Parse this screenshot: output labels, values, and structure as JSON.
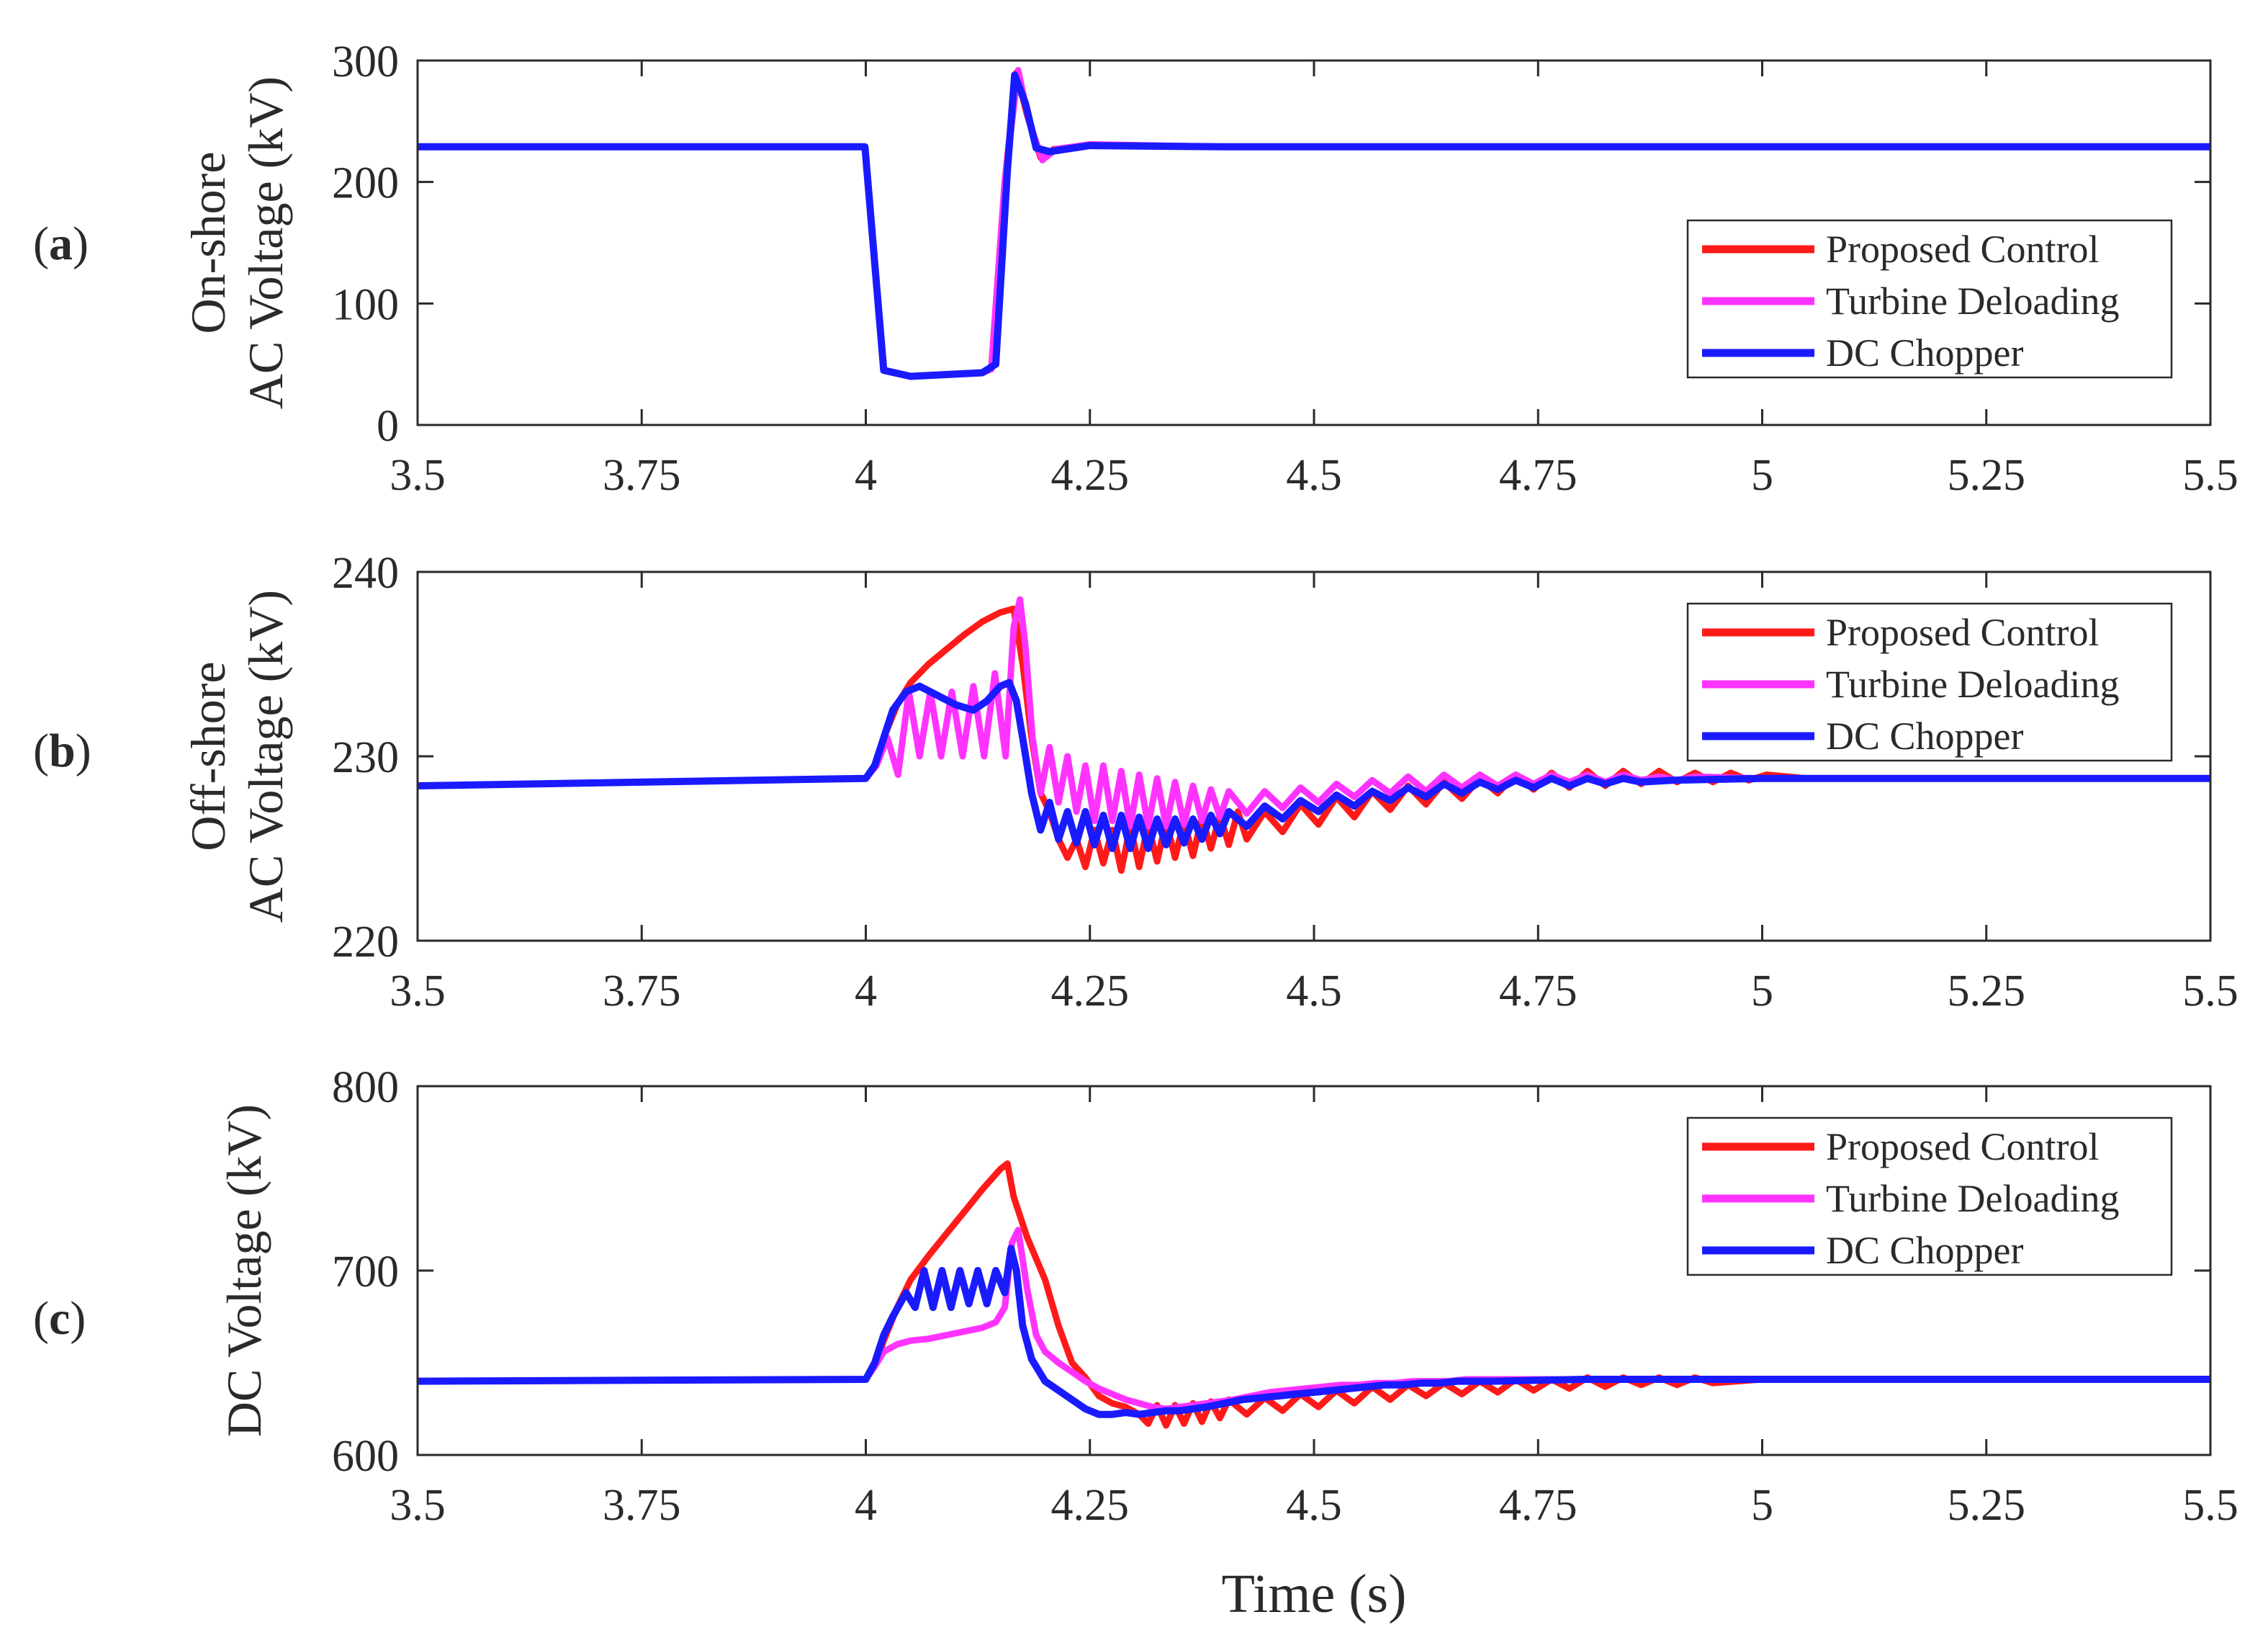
{
  "chart_data": [
    {
      "type": "line",
      "panel": "(a)",
      "panel_open": "(",
      "panel_letter": "a",
      "panel_close": ")",
      "ylabel_lines": [
        "On-shore",
        "AC Voltage (kV)"
      ],
      "xlabel": "",
      "xlim": [
        3.5,
        5.5
      ],
      "ylim": [
        0,
        300
      ],
      "xticks": [
        3.5,
        3.75,
        4,
        4.25,
        4.5,
        4.75,
        5,
        5.25,
        5.5
      ],
      "xtick_labels": [
        "3.5",
        "3.75",
        "4",
        "4.25",
        "4.5",
        "4.75",
        "5",
        "5.25",
        "5.5"
      ],
      "yticks": [
        0,
        100,
        200,
        300
      ],
      "ytick_labels": [
        "0",
        "100",
        "200",
        "300"
      ],
      "legend": [
        "Proposed Control",
        "Turbine Deloading",
        "DC Chopper"
      ],
      "legend_position": "bottom-right",
      "series": [
        {
          "name": "Proposed Control",
          "color": "#ff1a1a",
          "x": [
            3.5,
            3.999,
            4.02,
            4.05,
            4.13,
            4.14,
            4.155,
            4.168,
            4.18,
            4.195,
            4.21,
            4.25,
            4.4,
            5.5
          ],
          "y": [
            229,
            229,
            45,
            40,
            43,
            46,
            200,
            290,
            255,
            220,
            227,
            230,
            229,
            229
          ]
        },
        {
          "name": "Turbine Deloading",
          "color": "#ff33ff",
          "x": [
            3.5,
            3.999,
            4.02,
            4.05,
            4.13,
            4.14,
            4.155,
            4.17,
            4.182,
            4.197,
            4.212,
            4.25,
            4.4,
            5.5
          ],
          "y": [
            229,
            229,
            45,
            40,
            43,
            46,
            200,
            292,
            250,
            218,
            227,
            231,
            229,
            229
          ]
        },
        {
          "name": "DC Chopper",
          "color": "#1a1aff",
          "x": [
            3.5,
            3.999,
            4.02,
            4.05,
            4.13,
            4.145,
            4.158,
            4.166,
            4.178,
            4.19,
            4.205,
            4.25,
            4.4,
            5.5
          ],
          "y": [
            229,
            229,
            45,
            40,
            43,
            50,
            210,
            288,
            265,
            228,
            225,
            230,
            229,
            229
          ]
        }
      ]
    },
    {
      "type": "line",
      "panel": "(b)",
      "panel_open": "(",
      "panel_letter": "b",
      "panel_close": ")",
      "ylabel_lines": [
        "Off-shore",
        "AC Voltage (kV)"
      ],
      "xlabel": "",
      "xlim": [
        3.5,
        5.5
      ],
      "ylim": [
        220,
        240
      ],
      "xticks": [
        3.5,
        3.75,
        4,
        4.25,
        4.5,
        4.75,
        5,
        5.25,
        5.5
      ],
      "xtick_labels": [
        "3.5",
        "3.75",
        "4",
        "4.25",
        "4.5",
        "4.75",
        "5",
        "5.25",
        "5.5"
      ],
      "yticks": [
        220,
        230,
        240
      ],
      "ytick_labels": [
        "220",
        "230",
        "240"
      ],
      "legend": [
        "Proposed Control",
        "Turbine Deloading",
        "DC Chopper"
      ],
      "legend_position": "top-right",
      "series": [
        {
          "name": "Proposed Control",
          "color": "#ff1a1a",
          "x": [
            3.5,
            4.0,
            4.01,
            4.02,
            4.035,
            4.05,
            4.07,
            4.09,
            4.11,
            4.13,
            4.15,
            4.165,
            4.175,
            4.185,
            4.195,
            4.205,
            4.215,
            4.225,
            4.235,
            4.245,
            4.255,
            4.265,
            4.275,
            4.285,
            4.295,
            4.305,
            4.315,
            4.325,
            4.335,
            4.345,
            4.355,
            4.365,
            4.375,
            4.385,
            4.395,
            4.405,
            4.415,
            4.425,
            4.445,
            4.465,
            4.485,
            4.505,
            4.525,
            4.545,
            4.565,
            4.585,
            4.605,
            4.625,
            4.645,
            4.665,
            4.685,
            4.705,
            4.725,
            4.745,
            4.765,
            4.785,
            4.805,
            4.825,
            4.845,
            4.865,
            4.885,
            4.905,
            4.925,
            4.945,
            4.965,
            4.985,
            5.005,
            5.05,
            5.2,
            5.35,
            5.5
          ],
          "y": [
            228.4,
            228.8,
            229.5,
            231,
            232.8,
            234,
            235,
            235.8,
            236.6,
            237.3,
            237.8,
            238.0,
            235.0,
            231.0,
            228.0,
            227.0,
            225.5,
            224.5,
            225.5,
            224.0,
            226.0,
            224.2,
            226.0,
            223.8,
            226.2,
            224.0,
            226.3,
            224.3,
            226.5,
            224.5,
            226.5,
            224.6,
            226.7,
            225.0,
            226.8,
            225.2,
            227.0,
            225.5,
            227.0,
            225.9,
            227.4,
            226.3,
            227.8,
            226.7,
            228.1,
            227.1,
            228.4,
            227.4,
            228.6,
            227.7,
            228.8,
            228.0,
            229.0,
            228.2,
            229.1,
            228.3,
            229.2,
            228.4,
            229.2,
            228.5,
            229.2,
            228.6,
            229.1,
            228.6,
            229.1,
            228.7,
            229.0,
            228.8,
            228.8,
            228.8,
            228.8
          ]
        },
        {
          "name": "Turbine Deloading",
          "color": "#ff33ff",
          "x": [
            3.5,
            4.0,
            4.012,
            4.024,
            4.036,
            4.048,
            4.06,
            4.072,
            4.084,
            4.096,
            4.108,
            4.12,
            4.132,
            4.144,
            4.156,
            4.165,
            4.172,
            4.178,
            4.186,
            4.195,
            4.205,
            4.215,
            4.225,
            4.235,
            4.245,
            4.255,
            4.265,
            4.275,
            4.285,
            4.295,
            4.305,
            4.315,
            4.325,
            4.335,
            4.345,
            4.355,
            4.365,
            4.375,
            4.385,
            4.395,
            4.405,
            4.425,
            4.445,
            4.465,
            4.485,
            4.505,
            4.525,
            4.545,
            4.565,
            4.585,
            4.605,
            4.625,
            4.645,
            4.665,
            4.685,
            4.705,
            4.725,
            4.745,
            4.765,
            4.785,
            4.805,
            4.825,
            4.845,
            4.865,
            4.885,
            4.905,
            4.925,
            5.0,
            5.2,
            5.35,
            5.5
          ],
          "y": [
            228.4,
            228.8,
            229.5,
            231,
            229.0,
            233.5,
            230.0,
            233.5,
            230.0,
            233.5,
            230.0,
            233.8,
            230.0,
            234.5,
            230.0,
            237.0,
            238.5,
            236.0,
            231.0,
            228.0,
            230.5,
            227.5,
            230.0,
            227.0,
            229.5,
            226.5,
            229.5,
            226.5,
            229.2,
            226.2,
            229.0,
            226.2,
            228.8,
            226.2,
            228.6,
            226.3,
            228.4,
            226.5,
            228.2,
            226.7,
            228.1,
            226.9,
            228.1,
            227.2,
            228.3,
            227.5,
            228.5,
            227.8,
            228.7,
            228.0,
            228.9,
            228.1,
            229.0,
            228.3,
            229.0,
            228.4,
            229.0,
            228.5,
            229.0,
            228.6,
            229.0,
            228.6,
            229.0,
            228.7,
            228.9,
            228.7,
            228.9,
            228.8,
            228.8,
            228.8,
            228.8
          ]
        },
        {
          "name": "DC Chopper",
          "color": "#1a1aff",
          "x": [
            3.5,
            4.0,
            4.01,
            4.02,
            4.03,
            4.045,
            4.06,
            4.08,
            4.1,
            4.12,
            4.135,
            4.15,
            4.16,
            4.168,
            4.175,
            4.185,
            4.195,
            4.205,
            4.215,
            4.225,
            4.235,
            4.245,
            4.255,
            4.265,
            4.275,
            4.285,
            4.295,
            4.305,
            4.315,
            4.325,
            4.335,
            4.345,
            4.355,
            4.365,
            4.375,
            4.385,
            4.395,
            4.405,
            4.425,
            4.445,
            4.465,
            4.485,
            4.505,
            4.525,
            4.545,
            4.565,
            4.585,
            4.605,
            4.625,
            4.645,
            4.665,
            4.685,
            4.705,
            4.725,
            4.745,
            4.765,
            4.785,
            4.805,
            4.825,
            4.845,
            4.865,
            4.9,
            5.0,
            5.2,
            5.5
          ],
          "y": [
            228.4,
            228.8,
            229.5,
            231,
            232.5,
            233.5,
            233.8,
            233.3,
            232.8,
            232.5,
            233.0,
            233.8,
            234.0,
            233.0,
            231.0,
            228.0,
            226.0,
            227.5,
            225.5,
            227.0,
            225.3,
            227.0,
            225.2,
            226.8,
            225.0,
            226.8,
            225.0,
            226.7,
            225.0,
            226.6,
            225.2,
            226.6,
            225.3,
            226.6,
            225.5,
            226.8,
            225.8,
            227.0,
            226.2,
            227.3,
            226.6,
            227.6,
            227.0,
            227.9,
            227.3,
            228.1,
            227.6,
            228.3,
            227.8,
            228.5,
            228.0,
            228.6,
            228.2,
            228.7,
            228.3,
            228.8,
            228.4,
            228.8,
            228.5,
            228.8,
            228.6,
            228.7,
            228.8,
            228.8,
            228.8
          ]
        }
      ]
    },
    {
      "type": "line",
      "panel": "(c)",
      "panel_open": "(",
      "panel_letter": "c",
      "panel_close": ")",
      "ylabel_lines": [
        "DC Voltage (kV)"
      ],
      "xlabel": "Time (s)",
      "xlim": [
        3.5,
        5.5
      ],
      "ylim": [
        600,
        800
      ],
      "xticks": [
        3.5,
        3.75,
        4,
        4.25,
        4.5,
        4.75,
        5,
        5.25,
        5.5
      ],
      "xtick_labels": [
        "3.5",
        "3.75",
        "4",
        "4.25",
        "4.5",
        "4.75",
        "5",
        "5.25",
        "5.5"
      ],
      "yticks": [
        600,
        700,
        800
      ],
      "ytick_labels": [
        "600",
        "700",
        "800"
      ],
      "legend": [
        "Proposed Control",
        "Turbine Deloading",
        "DC Chopper"
      ],
      "legend_position": "top-right",
      "series": [
        {
          "name": "Proposed Control",
          "color": "#ff1a1a",
          "x": [
            3.5,
            4.0,
            4.01,
            4.02,
            4.035,
            4.05,
            4.07,
            4.09,
            4.11,
            4.13,
            4.15,
            4.158,
            4.165,
            4.18,
            4.2,
            4.215,
            4.23,
            4.245,
            4.26,
            4.275,
            4.29,
            4.305,
            4.315,
            4.325,
            4.335,
            4.345,
            4.355,
            4.365,
            4.375,
            4.385,
            4.395,
            4.405,
            4.425,
            4.445,
            4.465,
            4.485,
            4.505,
            4.525,
            4.545,
            4.565,
            4.585,
            4.605,
            4.625,
            4.645,
            4.665,
            4.685,
            4.705,
            4.725,
            4.745,
            4.765,
            4.785,
            4.805,
            4.825,
            4.845,
            4.865,
            4.885,
            4.905,
            4.925,
            4.945,
            5.0,
            5.2,
            5.35,
            5.5
          ],
          "y": [
            640,
            641,
            648,
            662,
            680,
            695,
            708,
            720,
            732,
            744,
            755,
            758,
            740,
            718,
            695,
            670,
            650,
            642,
            632,
            628,
            626,
            622,
            617,
            627,
            616,
            627,
            617,
            628,
            618,
            629,
            620,
            630,
            622,
            631,
            624,
            633,
            626,
            635,
            628,
            637,
            630,
            638,
            632,
            639,
            633,
            640,
            634,
            641,
            635,
            641,
            636,
            642,
            637,
            642,
            638,
            642,
            638,
            642,
            639,
            641,
            641,
            641,
            641
          ]
        },
        {
          "name": "Turbine Deloading",
          "color": "#ff33ff",
          "x": [
            3.5,
            4.0,
            4.01,
            4.02,
            4.035,
            4.05,
            4.07,
            4.09,
            4.11,
            4.13,
            4.145,
            4.155,
            4.163,
            4.17,
            4.18,
            4.19,
            4.2,
            4.215,
            4.23,
            4.245,
            4.26,
            4.275,
            4.29,
            4.305,
            4.32,
            4.335,
            4.35,
            4.365,
            4.38,
            4.395,
            4.41,
            4.43,
            4.45,
            4.47,
            4.49,
            4.51,
            4.53,
            4.55,
            4.57,
            4.59,
            4.61,
            4.63,
            4.65,
            4.67,
            4.69,
            4.71,
            4.73,
            4.75,
            4.8,
            5.0,
            5.2,
            5.5
          ],
          "y": [
            640,
            641,
            648,
            656,
            660,
            662,
            663,
            665,
            667,
            669,
            672,
            680,
            715,
            722,
            690,
            665,
            656,
            650,
            645,
            640,
            636,
            633,
            630,
            628,
            626,
            625,
            626,
            627,
            628,
            629,
            630,
            632,
            634,
            635,
            636,
            637,
            638,
            638,
            639,
            639,
            640,
            640,
            640,
            641,
            641,
            641,
            641,
            641,
            641,
            641,
            641,
            641
          ]
        },
        {
          "name": "DC Chopper",
          "color": "#1a1aff",
          "x": [
            3.5,
            4.0,
            4.01,
            4.02,
            4.03,
            4.045,
            4.055,
            4.065,
            4.075,
            4.085,
            4.095,
            4.105,
            4.115,
            4.125,
            4.135,
            4.145,
            4.155,
            4.162,
            4.168,
            4.175,
            4.185,
            4.2,
            4.215,
            4.23,
            4.245,
            4.26,
            4.275,
            4.29,
            4.305,
            4.32,
            4.335,
            4.35,
            4.365,
            4.38,
            4.4,
            4.42,
            4.44,
            4.46,
            4.48,
            4.5,
            4.52,
            4.54,
            4.56,
            4.58,
            4.6,
            4.62,
            4.64,
            4.66,
            4.7,
            4.8,
            5.0,
            5.2,
            5.5
          ],
          "y": [
            640,
            641,
            650,
            665,
            675,
            688,
            680,
            700,
            680,
            700,
            680,
            700,
            682,
            700,
            682,
            700,
            688,
            712,
            700,
            670,
            652,
            640,
            635,
            630,
            625,
            622,
            622,
            623,
            622,
            623,
            624,
            624,
            625,
            626,
            628,
            630,
            631,
            632,
            633,
            634,
            635,
            636,
            637,
            638,
            638,
            639,
            639,
            640,
            640,
            641,
            641,
            641,
            641
          ]
        }
      ]
    }
  ]
}
